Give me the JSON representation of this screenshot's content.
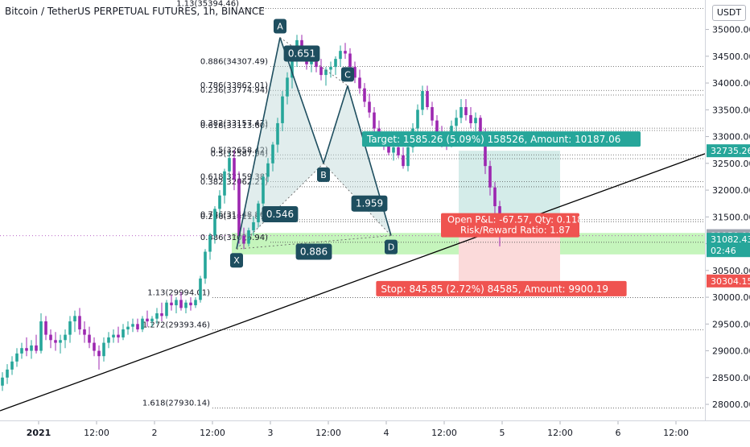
{
  "title": "Bitcoin / TetherUS PERPETUAL FUTURES, 1h, BINANCE",
  "currency": "USDT",
  "chart_data": {
    "type": "candlestick",
    "price_axis": {
      "min": 27700,
      "max": 35550,
      "ticks": [
        28000,
        28500,
        29000,
        29500,
        30000,
        30500,
        31000,
        31500,
        32000,
        32500,
        33000,
        33500,
        34000,
        34500,
        35000
      ],
      "tick_labels": [
        "28000.00",
        "28500.00",
        "29000.00",
        "29500.00",
        "30000.00",
        "30500.00",
        "31000.00",
        "31500.00",
        "32000.00",
        "32500.00",
        "33000.00",
        "33500.00",
        "34000.00",
        "34500.00",
        "35000.00"
      ]
    },
    "time_axis": {
      "min": 0,
      "max": 146,
      "ticks": [
        {
          "t": 8,
          "label": "2021"
        },
        {
          "t": 20,
          "label": "12:00"
        },
        {
          "t": 32,
          "label": "2"
        },
        {
          "t": 44,
          "label": "12:00"
        },
        {
          "t": 56,
          "label": "3"
        },
        {
          "t": 68,
          "label": "12:00"
        },
        {
          "t": 80,
          "label": "4"
        },
        {
          "t": 92,
          "label": "12:00"
        },
        {
          "t": 104,
          "label": "5"
        },
        {
          "t": 116,
          "label": "12:00"
        },
        {
          "t": 128,
          "label": "6"
        },
        {
          "t": 140,
          "label": "12:00"
        }
      ]
    },
    "candles": [
      [
        28350,
        28600,
        28250,
        28500
      ],
      [
        28500,
        28750,
        28380,
        28650
      ],
      [
        28650,
        28900,
        28550,
        28800
      ],
      [
        28800,
        29050,
        28700,
        28950
      ],
      [
        28950,
        29150,
        28850,
        29050
      ],
      [
        29050,
        29250,
        28900,
        29000
      ],
      [
        29000,
        29200,
        28850,
        29100
      ],
      [
        29100,
        29300,
        28950,
        29000
      ],
      [
        29000,
        29700,
        28950,
        29550
      ],
      [
        29550,
        29650,
        29200,
        29300
      ],
      [
        29300,
        29400,
        29050,
        29200
      ],
      [
        29200,
        29350,
        29000,
        29150
      ],
      [
        29150,
        29300,
        28950,
        29200
      ],
      [
        29200,
        29400,
        29050,
        29300
      ],
      [
        29300,
        29650,
        29150,
        29550
      ],
      [
        29550,
        29750,
        29350,
        29650
      ],
      [
        29650,
        29800,
        29300,
        29400
      ],
      [
        29400,
        29550,
        29150,
        29300
      ],
      [
        29300,
        29450,
        29050,
        29150
      ],
      [
        29150,
        29250,
        28900,
        29000
      ],
      [
        29000,
        29100,
        28650,
        28900
      ],
      [
        28900,
        29250,
        28800,
        29150
      ],
      [
        29150,
        29350,
        29050,
        29250
      ],
      [
        29250,
        29400,
        29150,
        29300
      ],
      [
        29300,
        29450,
        29150,
        29250
      ],
      [
        29250,
        29500,
        29200,
        29400
      ],
      [
        29400,
        29550,
        29300,
        29450
      ],
      [
        29450,
        29600,
        29350,
        29500
      ],
      [
        29500,
        29600,
        29350,
        29400
      ],
      [
        29400,
        29650,
        29350,
        29600
      ],
      [
        29600,
        29750,
        29450,
        29550
      ],
      [
        29550,
        29650,
        29450,
        29600
      ],
      [
        29600,
        29800,
        29500,
        29700
      ],
      [
        29700,
        29900,
        29550,
        29650
      ],
      [
        29650,
        29950,
        29600,
        29900
      ],
      [
        29900,
        30050,
        29750,
        29850
      ],
      [
        29850,
        30000,
        29700,
        29950
      ],
      [
        29950,
        30100,
        29750,
        29800
      ],
      [
        29800,
        29950,
        29700,
        29900
      ],
      [
        29900,
        30000,
        29750,
        29850
      ],
      [
        29850,
        30000,
        29800,
        29950
      ],
      [
        29950,
        30400,
        29900,
        30350
      ],
      [
        30350,
        30900,
        30250,
        30850
      ],
      [
        30850,
        31200,
        30700,
        31150
      ],
      [
        31150,
        31700,
        31000,
        31650
      ],
      [
        31650,
        32000,
        31500,
        31900
      ],
      [
        31900,
        32400,
        31750,
        32350
      ],
      [
        32350,
        32700,
        32200,
        32600
      ],
      [
        32600,
        32750,
        32000,
        32200
      ],
      [
        32200,
        32350,
        31000,
        31150
      ],
      [
        31150,
        31300,
        30900,
        31000
      ],
      [
        31000,
        31300,
        30950,
        31250
      ],
      [
        31250,
        31500,
        31150,
        31400
      ],
      [
        31400,
        31800,
        31300,
        31750
      ],
      [
        31750,
        32300,
        31650,
        32250
      ],
      [
        32250,
        32600,
        32150,
        32500
      ],
      [
        32500,
        32900,
        32350,
        32850
      ],
      [
        32850,
        33350,
        32700,
        33250
      ],
      [
        33250,
        33850,
        33100,
        33750
      ],
      [
        33750,
        34200,
        33600,
        34100
      ],
      [
        34100,
        34550,
        33900,
        34450
      ],
      [
        34450,
        34900,
        34300,
        34800
      ],
      [
        34800,
        34900,
        34450,
        34550
      ],
      [
        34550,
        34700,
        34250,
        34350
      ],
      [
        34350,
        34550,
        34200,
        34450
      ],
      [
        34450,
        34600,
        34200,
        34300
      ],
      [
        34300,
        34450,
        34050,
        34150
      ],
      [
        34150,
        34300,
        33950,
        34250
      ],
      [
        34250,
        34400,
        34100,
        34300
      ],
      [
        34300,
        34500,
        34150,
        34450
      ],
      [
        34450,
        34700,
        34300,
        34600
      ],
      [
        34600,
        34750,
        34450,
        34550
      ],
      [
        34550,
        34650,
        34250,
        34300
      ],
      [
        34300,
        34400,
        34000,
        34100
      ],
      [
        34100,
        34250,
        33800,
        33900
      ],
      [
        33900,
        34000,
        33550,
        33650
      ],
      [
        33650,
        33800,
        33350,
        33450
      ],
      [
        33450,
        33550,
        33050,
        33150
      ],
      [
        33150,
        33300,
        32850,
        32950
      ],
      [
        32950,
        33050,
        32750,
        32850
      ],
      [
        32850,
        33000,
        32650,
        32700
      ],
      [
        32700,
        32900,
        32550,
        32800
      ],
      [
        32800,
        32950,
        32600,
        32650
      ],
      [
        32650,
        32800,
        32400,
        32450
      ],
      [
        32450,
        32900,
        32350,
        32800
      ],
      [
        32800,
        33250,
        32700,
        33150
      ],
      [
        33150,
        33600,
        33050,
        33500
      ],
      [
        33500,
        33950,
        33400,
        33850
      ],
      [
        33850,
        33950,
        33500,
        33550
      ],
      [
        33550,
        33650,
        33200,
        33300
      ],
      [
        33300,
        33400,
        32950,
        33050
      ],
      [
        33050,
        33200,
        32800,
        32900
      ],
      [
        32900,
        33050,
        32750,
        32850
      ],
      [
        32850,
        33300,
        32800,
        33200
      ],
      [
        33200,
        33500,
        33050,
        33350
      ],
      [
        33350,
        33700,
        33250,
        33550
      ],
      [
        33550,
        33700,
        33300,
        33400
      ],
      [
        33400,
        33550,
        33150,
        33250
      ],
      [
        33250,
        33450,
        33100,
        33350
      ],
      [
        33350,
        33400,
        32900,
        33000
      ],
      [
        33000,
        33150,
        32300,
        32450
      ],
      [
        32450,
        32550,
        31900,
        32050
      ],
      [
        32050,
        32150,
        31550,
        31700
      ],
      [
        31700,
        31800,
        30950,
        31150
      ]
    ],
    "pattern_points": [
      {
        "label": "X",
        "t": 49,
        "price": 30900
      },
      {
        "label": "A",
        "t": 58,
        "price": 34850
      },
      {
        "label": "B",
        "t": 67,
        "price": 32500
      },
      {
        "label": "C",
        "t": 72,
        "price": 33950
      },
      {
        "label": "D",
        "t": 81,
        "price": 31150
      }
    ],
    "ratios": [
      {
        "text": "0.651",
        "t": 62.5,
        "price": 34550
      },
      {
        "text": "0.546",
        "t": 58,
        "price": 31550
      },
      {
        "text": "1.959",
        "t": 76.5,
        "price": 31750
      },
      {
        "text": "0.886",
        "t": 65,
        "price": 30850
      }
    ],
    "fib_levels": [
      {
        "label": "1.13(35394.46)",
        "price": 35394.46
      },
      {
        "label": "0.886(34307.49)",
        "price": 34307.49
      },
      {
        "label": "0.786(33862.01)",
        "price": 33862.01
      },
      {
        "label": "0.236(33774.94)",
        "price": 33774.94
      },
      {
        "label": "0.382(33157.47)",
        "price": 33157.47
      },
      {
        "label": "0.618(33113.60)",
        "price": 33113.6
      },
      {
        "label": "0.5(32658.42)",
        "price": 32658.42
      },
      {
        "label": "0.5(32587.94)",
        "price": 32587.94
      },
      {
        "label": "0.618(32159.38)",
        "price": 32159.38
      },
      {
        "label": "0.382(32062.27)",
        "price": 32062.27
      },
      {
        "label": "0.786(31448.86)",
        "price": 31448.86
      },
      {
        "label": "0.236(31411.87)",
        "price": 31411.87
      },
      {
        "label": "0.886(31025.94)",
        "price": 31025.94
      },
      {
        "label": "1.13(29994.01)",
        "price": 29994.01
      },
      {
        "label": "1.272(29393.46)",
        "price": 29393.46
      },
      {
        "label": "1.618(27930.14)",
        "price": 27930.14
      }
    ],
    "prz_zone": [
      30800,
      31200
    ],
    "trendline": [
      {
        "t": 0,
        "price": 27880
      },
      {
        "t": 146,
        "price": 32680
      }
    ],
    "position": {
      "entry": 31150,
      "target": 32735.26,
      "stop": 30304.15,
      "t_start": 95,
      "t_end": 116,
      "target_text": "Target: 1585.26 (5.09%) 158526, Amount: 10187.06",
      "pnl_text": "Open P&L: -67.57, Qty: 0.118",
      "rr_text": "Risk/Reward Ratio: 1.87",
      "stop_text": "Stop: 845.85 (2.72%) 84585, Amount: 9900.19"
    },
    "price_badges": [
      {
        "text": "32735.26",
        "price": 32735.26,
        "color": "#26a69a"
      },
      {
        "text": "31150.00",
        "price": 31150,
        "color": "#9ca3af"
      },
      {
        "text": "31082.43",
        "price": 31082.43,
        "color": "#26a69a"
      },
      {
        "text": "02:46",
        "price": 30870,
        "color": "#26a69a"
      },
      {
        "text": "30304.15",
        "price": 30304.15,
        "color": "#ef5350"
      }
    ],
    "colors": {
      "up": "#26a69a",
      "down": "#9c27b0",
      "pattern_line": "#1e4e5f",
      "pattern_fill": "#bcd6d6",
      "label_bg": "#1e4e5f",
      "prz": "#b2f2a5",
      "target_fill": "#d4ece9",
      "stop_fill": "#fbdada"
    }
  }
}
